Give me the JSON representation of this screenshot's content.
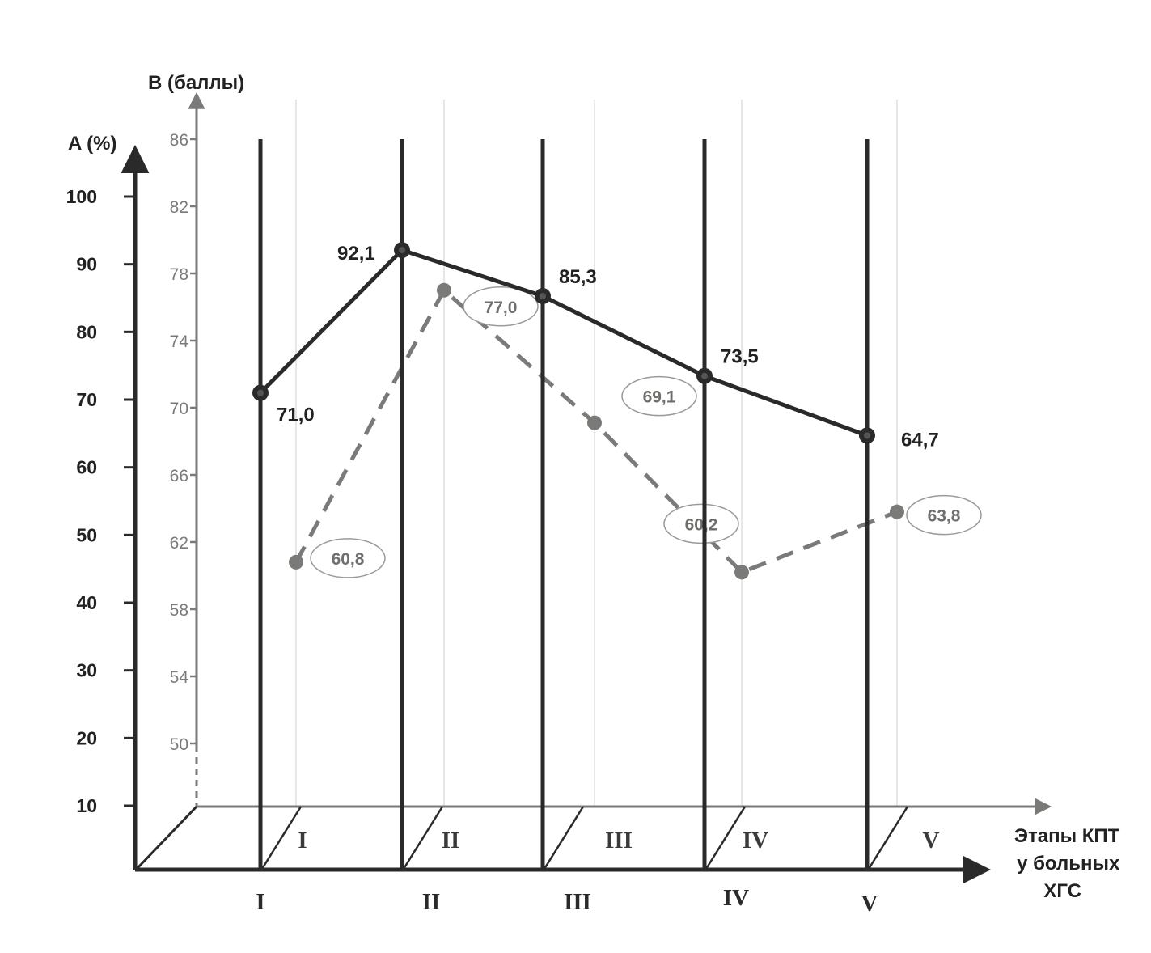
{
  "chart_data": {
    "type": "line",
    "categories": [
      "I",
      "II",
      "III",
      "IV",
      "V"
    ],
    "axes": {
      "a_label": "A (%)",
      "b_label": "B (баллы)",
      "x_label_lines": [
        "Этапы КПТ",
        "у больных",
        "ХГС"
      ],
      "a_ticks": [
        10,
        20,
        30,
        40,
        50,
        60,
        70,
        80,
        90,
        100
      ],
      "b_ticks": [
        50,
        54,
        58,
        62,
        66,
        70,
        74,
        78,
        82,
        86
      ],
      "a_range": [
        0,
        100
      ],
      "b_range": [
        50,
        86
      ]
    },
    "series": [
      {
        "axis": "A",
        "style": "solid",
        "values": [
          71.0,
          92.1,
          85.3,
          73.5,
          64.7
        ],
        "labels": [
          "71,0",
          "92,1",
          "85,3",
          "73,5",
          "64,7"
        ]
      },
      {
        "axis": "B",
        "style": "dashed",
        "values": [
          60.8,
          77.0,
          69.1,
          60.2,
          63.8
        ],
        "labels": [
          "60,8",
          "77,0",
          "69,1",
          "60,2",
          "63,8"
        ]
      }
    ],
    "front_stage_labels": [
      "I",
      "II",
      "III",
      "IV",
      "V"
    ],
    "back_stage_labels": [
      "I",
      "II",
      "III",
      "IV",
      "V"
    ],
    "colors": {
      "primary": "#2a2a2a",
      "secondary": "#7a7a78"
    },
    "grid": "vertical stage lines"
  }
}
